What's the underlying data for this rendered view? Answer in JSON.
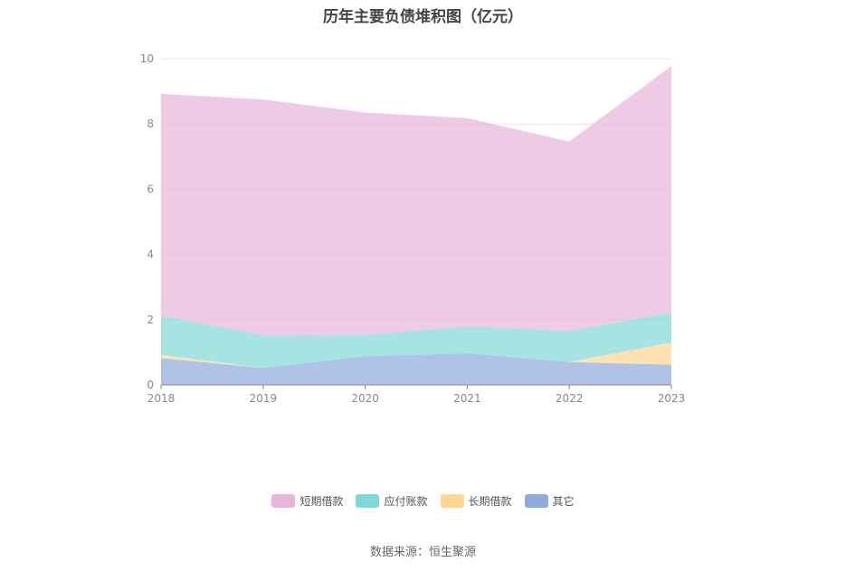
{
  "chart_data": {
    "type": "area",
    "stacked": true,
    "title": "历年主要负债堆积图（亿元）",
    "x": [
      "2018",
      "2019",
      "2020",
      "2021",
      "2022",
      "2023"
    ],
    "ylim": [
      0,
      10
    ],
    "yticks": [
      "0",
      "2",
      "4",
      "6",
      "8",
      "10"
    ],
    "grid": true,
    "legend_position": "bottom",
    "series": [
      {
        "name": "其它",
        "color": "#8faadc",
        "values": [
          0.82,
          0.52,
          0.88,
          0.97,
          0.7,
          0.62
        ]
      },
      {
        "name": "长期借款",
        "color": "#ffd591",
        "values": [
          0.1,
          0.0,
          0.0,
          0.0,
          0.0,
          0.68
        ]
      },
      {
        "name": "应付账款",
        "color": "#80d8d8",
        "values": [
          1.2,
          1.0,
          0.65,
          0.82,
          0.95,
          0.92
        ]
      },
      {
        "name": "短期借款",
        "color": "#e8b4d8",
        "values": [
          6.8,
          7.23,
          6.82,
          6.39,
          5.81,
          7.56
        ]
      }
    ],
    "legend_order": [
      "短期借款",
      "应付账款",
      "长期借款",
      "其它"
    ]
  },
  "footer": {
    "source": "数据来源：恒生聚源"
  }
}
